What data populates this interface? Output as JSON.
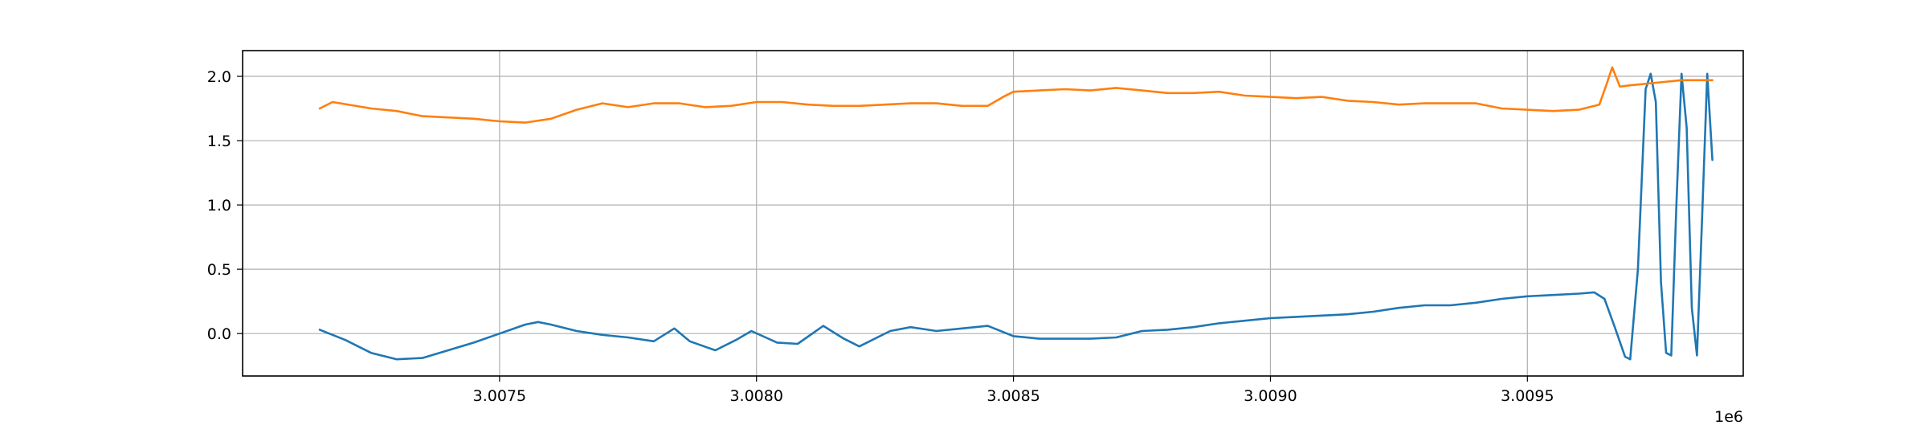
{
  "chart_data": {
    "type": "line",
    "title": "",
    "xlabel": "",
    "ylabel": "",
    "x_offset_label": "1e6",
    "xlim": [
      3.007,
      3.00992
    ],
    "ylim": [
      -0.33,
      2.2
    ],
    "x_ticks": [
      3.0075,
      3.008,
      3.0085,
      3.009,
      3.0095
    ],
    "x_tick_labels": [
      "3.0075",
      "3.0080",
      "3.0085",
      "3.0090",
      "3.0095"
    ],
    "y_ticks": [
      0.0,
      0.5,
      1.0,
      1.5,
      2.0
    ],
    "y_tick_labels": [
      "0.0",
      "0.5",
      "1.0",
      "1.5",
      "2.0"
    ],
    "grid": true,
    "legend": "none",
    "series": [
      {
        "color": "#1f77b4",
        "points": [
          [
            3.00715,
            0.03
          ],
          [
            3.0072,
            -0.05
          ],
          [
            3.00725,
            -0.15
          ],
          [
            3.0073,
            -0.2
          ],
          [
            3.00735,
            -0.19
          ],
          [
            3.0074,
            -0.13
          ],
          [
            3.00745,
            -0.07
          ],
          [
            3.0075,
            0.0
          ],
          [
            3.00755,
            0.07
          ],
          [
            3.007575,
            0.09
          ],
          [
            3.0076,
            0.07
          ],
          [
            3.00765,
            0.02
          ],
          [
            3.0077,
            -0.01
          ],
          [
            3.00775,
            -0.03
          ],
          [
            3.0078,
            -0.06
          ],
          [
            3.00784,
            0.04
          ],
          [
            3.00787,
            -0.06
          ],
          [
            3.00792,
            -0.13
          ],
          [
            3.00796,
            -0.05
          ],
          [
            3.00799,
            0.02
          ],
          [
            3.00804,
            -0.07
          ],
          [
            3.00808,
            -0.08
          ],
          [
            3.00813,
            0.06
          ],
          [
            3.00817,
            -0.04
          ],
          [
            3.0082,
            -0.1
          ],
          [
            3.00826,
            0.02
          ],
          [
            3.0083,
            0.05
          ],
          [
            3.00835,
            0.02
          ],
          [
            3.0084,
            0.04
          ],
          [
            3.00845,
            0.06
          ],
          [
            3.0085,
            -0.02
          ],
          [
            3.00855,
            -0.04
          ],
          [
            3.0086,
            -0.04
          ],
          [
            3.00865,
            -0.04
          ],
          [
            3.0087,
            -0.03
          ],
          [
            3.00875,
            0.02
          ],
          [
            3.0088,
            0.03
          ],
          [
            3.00885,
            0.05
          ],
          [
            3.0089,
            0.08
          ],
          [
            3.00895,
            0.1
          ],
          [
            3.009,
            0.12
          ],
          [
            3.00905,
            0.13
          ],
          [
            3.0091,
            0.14
          ],
          [
            3.00915,
            0.15
          ],
          [
            3.0092,
            0.17
          ],
          [
            3.00925,
            0.2
          ],
          [
            3.0093,
            0.22
          ],
          [
            3.00935,
            0.22
          ],
          [
            3.0094,
            0.24
          ],
          [
            3.00945,
            0.27
          ],
          [
            3.0095,
            0.29
          ],
          [
            3.00955,
            0.3
          ],
          [
            3.0096,
            0.31
          ],
          [
            3.00963,
            0.32
          ],
          [
            3.00965,
            0.27
          ],
          [
            3.00967,
            0.05
          ],
          [
            3.00969,
            -0.18
          ],
          [
            3.0097,
            -0.2
          ],
          [
            3.009715,
            0.5
          ],
          [
            3.00973,
            1.9
          ],
          [
            3.00974,
            2.02
          ],
          [
            3.00975,
            1.8
          ],
          [
            3.00976,
            0.4
          ],
          [
            3.00977,
            -0.15
          ],
          [
            3.00978,
            -0.17
          ],
          [
            3.00979,
            1.0
          ],
          [
            3.0098,
            2.02
          ],
          [
            3.00981,
            1.6
          ],
          [
            3.00982,
            0.2
          ],
          [
            3.00983,
            -0.17
          ],
          [
            3.00984,
            0.9
          ],
          [
            3.00985,
            2.02
          ],
          [
            3.00986,
            1.35
          ]
        ]
      },
      {
        "color": "#ff7f0e",
        "points": [
          [
            3.00715,
            1.75
          ],
          [
            3.007175,
            1.8
          ],
          [
            3.00725,
            1.75
          ],
          [
            3.0073,
            1.73
          ],
          [
            3.00735,
            1.69
          ],
          [
            3.0074,
            1.68
          ],
          [
            3.00745,
            1.67
          ],
          [
            3.0075,
            1.65
          ],
          [
            3.00755,
            1.64
          ],
          [
            3.0076,
            1.67
          ],
          [
            3.00765,
            1.74
          ],
          [
            3.0077,
            1.79
          ],
          [
            3.00775,
            1.76
          ],
          [
            3.0078,
            1.79
          ],
          [
            3.00785,
            1.79
          ],
          [
            3.0079,
            1.76
          ],
          [
            3.00795,
            1.77
          ],
          [
            3.008,
            1.8
          ],
          [
            3.00805,
            1.8
          ],
          [
            3.0081,
            1.78
          ],
          [
            3.00815,
            1.77
          ],
          [
            3.0082,
            1.77
          ],
          [
            3.00825,
            1.78
          ],
          [
            3.0083,
            1.79
          ],
          [
            3.00835,
            1.79
          ],
          [
            3.0084,
            1.77
          ],
          [
            3.00845,
            1.77
          ],
          [
            3.00848,
            1.84
          ],
          [
            3.0085,
            1.88
          ],
          [
            3.00855,
            1.89
          ],
          [
            3.0086,
            1.9
          ],
          [
            3.00865,
            1.89
          ],
          [
            3.0087,
            1.91
          ],
          [
            3.00875,
            1.89
          ],
          [
            3.0088,
            1.87
          ],
          [
            3.00885,
            1.87
          ],
          [
            3.0089,
            1.88
          ],
          [
            3.00895,
            1.85
          ],
          [
            3.009,
            1.84
          ],
          [
            3.00905,
            1.83
          ],
          [
            3.0091,
            1.84
          ],
          [
            3.00915,
            1.81
          ],
          [
            3.0092,
            1.8
          ],
          [
            3.00925,
            1.78
          ],
          [
            3.0093,
            1.79
          ],
          [
            3.00935,
            1.79
          ],
          [
            3.0094,
            1.79
          ],
          [
            3.00945,
            1.75
          ],
          [
            3.0095,
            1.74
          ],
          [
            3.00955,
            1.73
          ],
          [
            3.0096,
            1.74
          ],
          [
            3.00964,
            1.78
          ],
          [
            3.009655,
            1.95
          ],
          [
            3.009665,
            2.07
          ],
          [
            3.00968,
            1.92
          ],
          [
            3.0097,
            1.93
          ],
          [
            3.00975,
            1.95
          ],
          [
            3.0098,
            1.97
          ],
          [
            3.00986,
            1.97
          ]
        ]
      }
    ]
  }
}
